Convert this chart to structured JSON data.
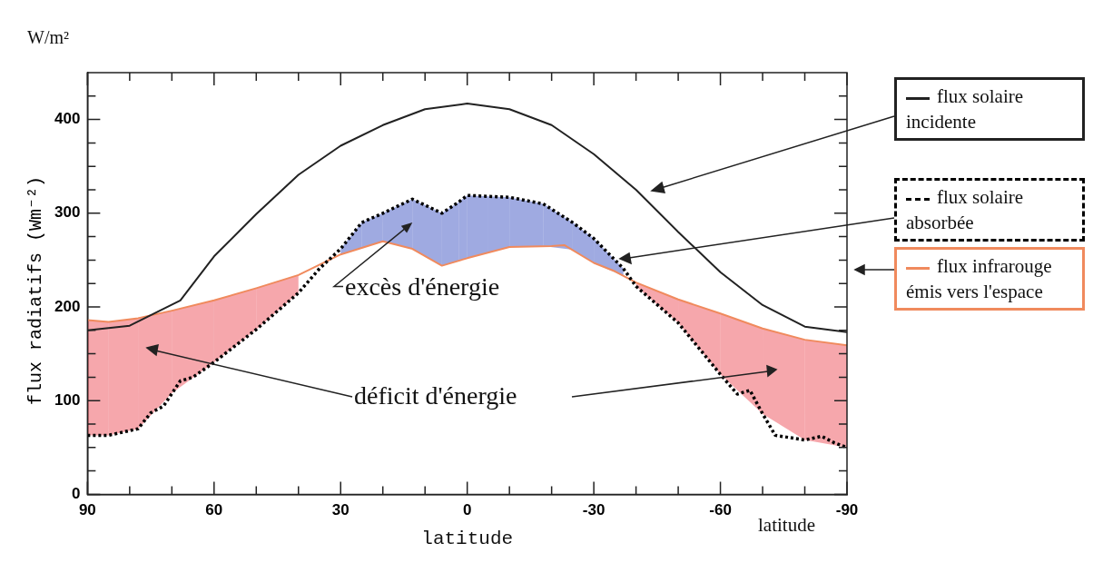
{
  "chart_data": {
    "type": "line",
    "xlabel": "latitude",
    "ylabel": "flux radiatifs (Wm⁻²)",
    "annotations": [
      "W/m²",
      "latitude",
      {
        "text": "excès d'énergie",
        "x": 13,
        "y": 290
      },
      "déficit d'énergie"
    ],
    "xlim": [
      90,
      -90
    ],
    "xticks": [
      90,
      {
        "value": 80,
        "label": null
      },
      {
        "value": 70,
        "label": null
      },
      60,
      {
        "value": 50,
        "label": null
      },
      {
        "value": 40,
        "label": null
      },
      30,
      {
        "value": 20,
        "label": null
      },
      {
        "value": 10,
        "label": null
      },
      0,
      {
        "value": -10,
        "label": null
      },
      {
        "value": -20,
        "label": null
      },
      -30,
      {
        "value": -40,
        "label": null
      },
      {
        "value": -50,
        "label": null
      },
      -60,
      {
        "value": -70,
        "label": null
      },
      {
        "value": -80,
        "label": null
      },
      -90
    ],
    "ylim": [
      0,
      450
    ],
    "yticks": [
      0,
      {
        "value": 25,
        "label": null
      },
      {
        "value": 50,
        "label": null
      },
      {
        "value": 75,
        "label": null
      },
      100,
      {
        "value": 125,
        "label": null
      },
      {
        "value": 150,
        "label": null
      },
      {
        "value": 175,
        "label": null
      },
      200,
      {
        "value": 225,
        "label": null
      },
      {
        "value": 250,
        "label": null
      },
      {
        "value": 275,
        "label": null
      },
      300,
      {
        "value": 325,
        "label": null
      },
      {
        "value": 350,
        "label": null
      },
      {
        "value": 375,
        "label": null
      },
      400,
      {
        "value": 425,
        "label": null
      }
    ],
    "legend": "right",
    "marker": "none",
    "series": [
      {
        "name": "flux solaire incidente",
        "color": "#222222",
        "line_style": "solid",
        "x": [
          90,
          80,
          68,
          60,
          50,
          40,
          30,
          20,
          10,
          0,
          -10,
          -20,
          -30,
          -40,
          -50,
          -60,
          -70,
          -80,
          -90
        ],
        "values": [
          175,
          180,
          207,
          254,
          299,
          341,
          372,
          394,
          411,
          417,
          411,
          394,
          363,
          325,
          280,
          237,
          202,
          179,
          173
        ]
      },
      {
        "name": "flux solaire absorbée",
        "color": "#000000",
        "line_style": "dashed",
        "x": [
          90,
          85,
          78,
          75,
          72,
          68,
          65,
          60,
          50,
          40,
          35,
          30,
          25,
          20,
          13,
          6,
          2,
          0,
          -5,
          -10,
          -18,
          -25,
          -30,
          -37,
          -40,
          -50,
          -60,
          -64,
          -67,
          -70,
          -73,
          -80,
          -84,
          -87,
          -90
        ],
        "values": [
          63,
          63,
          70,
          87,
          94,
          121,
          125,
          141,
          176,
          215,
          241,
          262,
          290,
          300,
          315,
          300,
          312,
          319,
          318,
          317,
          310,
          290,
          273,
          241,
          222,
          183,
          128,
          107,
          111,
          86,
          63,
          58,
          62,
          55,
          50
        ],
        "lower": [
          null,
          null,
          null,
          null,
          null,
          null,
          null,
          null,
          null,
          null,
          null,
          256,
          263,
          270,
          262,
          244,
          249,
          252,
          258,
          264,
          265,
          261,
          247,
          233,
          null,
          null,
          null,
          null,
          null,
          null,
          null,
          null,
          null,
          null,
          null
        ],
        "upper": [
          null,
          null,
          null,
          null,
          null,
          null,
          null,
          null,
          null,
          null,
          null,
          262,
          290,
          300,
          315,
          300,
          312,
          319,
          318,
          317,
          310,
          290,
          273,
          241,
          null,
          null,
          null,
          null,
          null,
          null,
          null,
          null,
          null,
          null,
          null
        ]
      },
      {
        "name": "flux infrarouge émis vers l'espace",
        "color": "#f08a5d",
        "line_style": "solid",
        "x": [
          90,
          85,
          78,
          70,
          60,
          50,
          40,
          30,
          20,
          13,
          6,
          0,
          -10,
          -20,
          -23,
          -30,
          -35,
          -40,
          -50,
          -60,
          -70,
          -80,
          -90
        ],
        "values": [
          186,
          184,
          188,
          196,
          207,
          220,
          234,
          256,
          270,
          262,
          244,
          252,
          264,
          265,
          266,
          247,
          238,
          226,
          208,
          193,
          177,
          165,
          159
        ],
        "lower": [
          63,
          63,
          70,
          108,
          141,
          176,
          215,
          null,
          null,
          null,
          null,
          null,
          null,
          null,
          null,
          null,
          null,
          222,
          183,
          128,
          86,
          58,
          50
        ],
        "upper": [
          186,
          184,
          188,
          196,
          207,
          220,
          234,
          null,
          null,
          null,
          null,
          null,
          null,
          null,
          null,
          null,
          null,
          226,
          208,
          193,
          177,
          165,
          159
        ]
      }
    ]
  }
}
